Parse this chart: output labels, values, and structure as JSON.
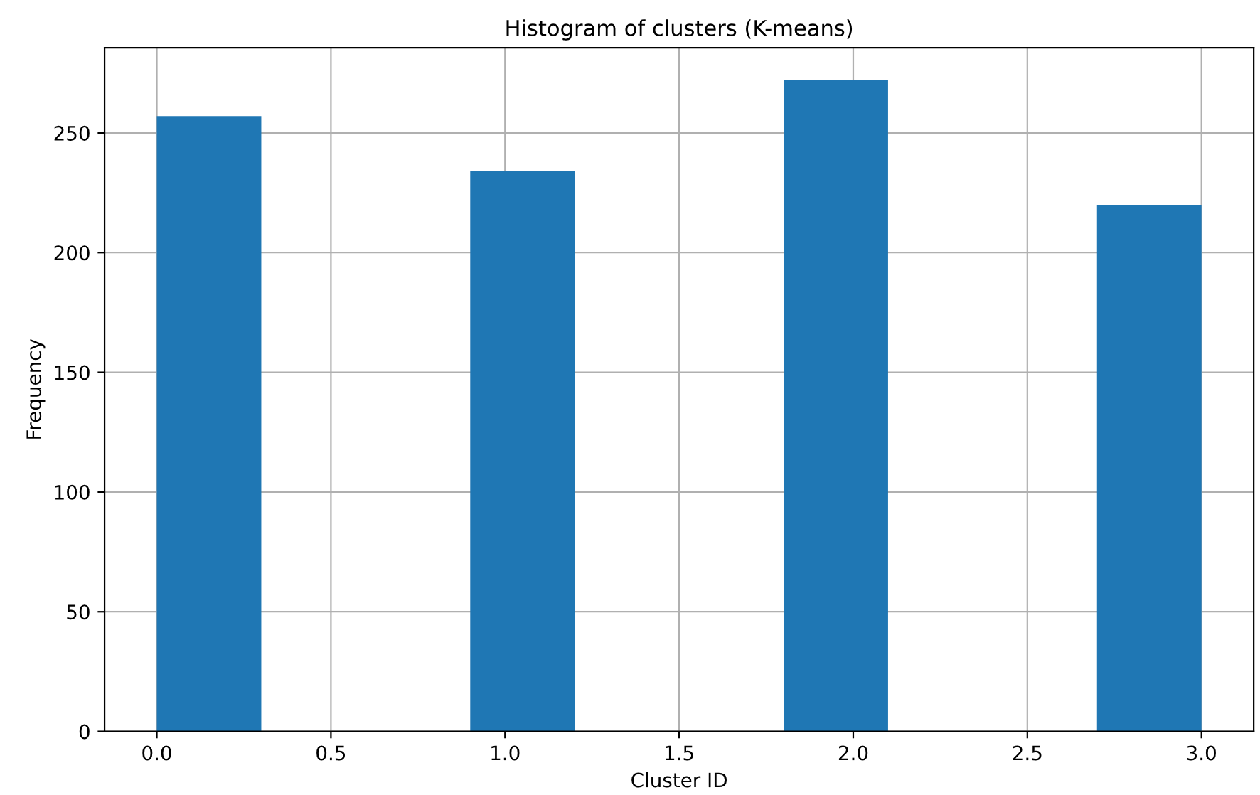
{
  "chart_data": {
    "type": "histogram",
    "title": "Histogram of clusters (K-means)",
    "xlabel": "Cluster ID",
    "ylabel": "Frequency",
    "bins": [
      0,
      0.3,
      0.6,
      0.9,
      1.2,
      1.5,
      1.8,
      2.1,
      2.4,
      2.7,
      3.0
    ],
    "values": [
      257,
      0,
      0,
      234,
      0,
      0,
      272,
      0,
      0,
      220
    ],
    "color": "#1f77b4",
    "xlim": [
      -0.15,
      3.15
    ],
    "ylim": [
      0,
      285.6
    ],
    "xticks": [
      {
        "value": 0,
        "label": "0.0"
      },
      0.5,
      {
        "value": 1,
        "label": "1.0"
      },
      1.5,
      {
        "value": 2,
        "label": "2.0"
      },
      2.5,
      {
        "value": 3,
        "label": "3.0"
      }
    ],
    "yticks": [
      0,
      50,
      100,
      150,
      200,
      250
    ],
    "grid": true
  }
}
